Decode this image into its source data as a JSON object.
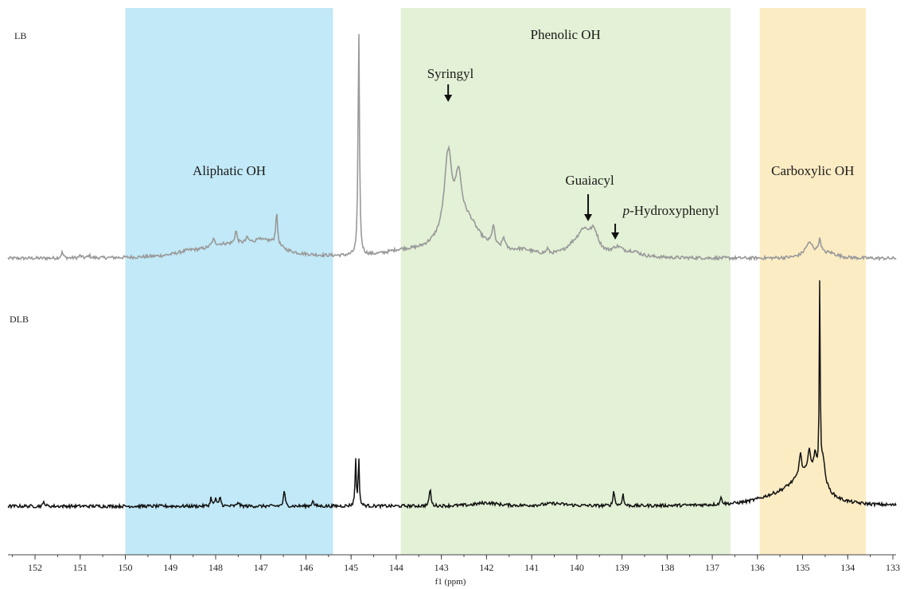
{
  "chart_data": {
    "type": "line",
    "xlabel": "f1 (ppm)",
    "xlim": [
      152.6,
      133.0
    ],
    "x_reversed": true,
    "x_ticks": [
      152,
      151,
      150,
      149,
      148,
      147,
      146,
      145,
      144,
      143,
      142,
      141,
      140,
      139,
      138,
      137,
      136,
      135,
      134,
      133
    ],
    "regions": [
      {
        "label": "Aliphatic OH",
        "from": 150.0,
        "to": 145.4,
        "color": "#c2e9f7"
      },
      {
        "label": "Phenolic OH",
        "from": 143.9,
        "to": 136.6,
        "color": "#e3f1d6"
      },
      {
        "label": "Carboxylic OH",
        "from": 135.95,
        "to": 133.6,
        "color": "#fcecc4"
      }
    ],
    "annotations": [
      {
        "label": "Syringyl",
        "x": 142.85
      },
      {
        "label": "Guaiacyl",
        "x": 139.75
      },
      {
        "label": "p-Hydroxyphenyl",
        "italic_prefix": "p",
        "rest": "-Hydroxyphenyl",
        "x": 139.15
      }
    ],
    "series": [
      {
        "name": "LB",
        "color": "#999999",
        "baseline": 0,
        "peaks": [
          [
            151.4,
            7,
            0.03
          ],
          [
            151.0,
            3,
            0.03
          ],
          [
            150.8,
            3,
            0.03
          ],
          [
            148.6,
            5,
            0.35
          ],
          [
            147.9,
            10,
            0.45
          ],
          [
            147.2,
            14,
            0.6
          ],
          [
            146.8,
            10,
            0.3
          ],
          [
            148.05,
            8,
            0.04
          ],
          [
            147.55,
            16,
            0.03
          ],
          [
            147.3,
            6,
            0.03
          ],
          [
            147.05,
            5,
            0.03
          ],
          [
            146.65,
            40,
            0.025
          ],
          [
            144.83,
            287,
            0.018
          ],
          [
            143.9,
            5,
            0.4
          ],
          [
            142.85,
            100,
            0.1
          ],
          [
            142.62,
            58,
            0.08
          ],
          [
            142.4,
            26,
            0.3
          ],
          [
            142.7,
            25,
            0.55
          ],
          [
            141.85,
            25,
            0.04
          ],
          [
            141.62,
            14,
            0.04
          ],
          [
            141.2,
            6,
            0.3
          ],
          [
            140.65,
            6,
            0.03
          ],
          [
            139.85,
            28,
            0.18
          ],
          [
            139.62,
            25,
            0.12
          ],
          [
            140.1,
            8,
            0.2
          ],
          [
            139.1,
            10,
            0.15
          ],
          [
            138.75,
            6,
            0.2
          ],
          [
            134.85,
            18,
            0.12
          ],
          [
            134.62,
            18,
            0.04
          ],
          [
            134.4,
            6,
            0.2
          ]
        ]
      },
      {
        "name": "DLB",
        "color": "#111111",
        "baseline": 0,
        "peaks": [
          [
            151.8,
            6,
            0.02
          ],
          [
            148.1,
            11,
            0.02
          ],
          [
            148.0,
            10,
            0.02
          ],
          [
            147.9,
            12,
            0.02
          ],
          [
            147.5,
            6,
            0.02
          ],
          [
            146.48,
            20,
            0.02
          ],
          [
            145.85,
            8,
            0.02
          ],
          [
            144.9,
            58,
            0.015
          ],
          [
            144.83,
            58,
            0.015
          ],
          [
            143.25,
            23,
            0.02
          ],
          [
            142.0,
            4,
            0.3
          ],
          [
            140.5,
            3,
            0.3
          ],
          [
            139.18,
            20,
            0.02
          ],
          [
            138.98,
            15,
            0.02
          ],
          [
            136.8,
            10,
            0.02
          ],
          [
            135.7,
            6,
            0.5
          ],
          [
            135.2,
            12,
            0.4
          ],
          [
            134.95,
            20,
            0.3
          ],
          [
            134.7,
            24,
            0.25
          ],
          [
            135.05,
            28,
            0.03
          ],
          [
            134.85,
            28,
            0.03
          ],
          [
            134.72,
            22,
            0.03
          ],
          [
            134.62,
            238,
            0.012
          ],
          [
            134.55,
            30,
            0.05
          ]
        ]
      }
    ]
  }
}
